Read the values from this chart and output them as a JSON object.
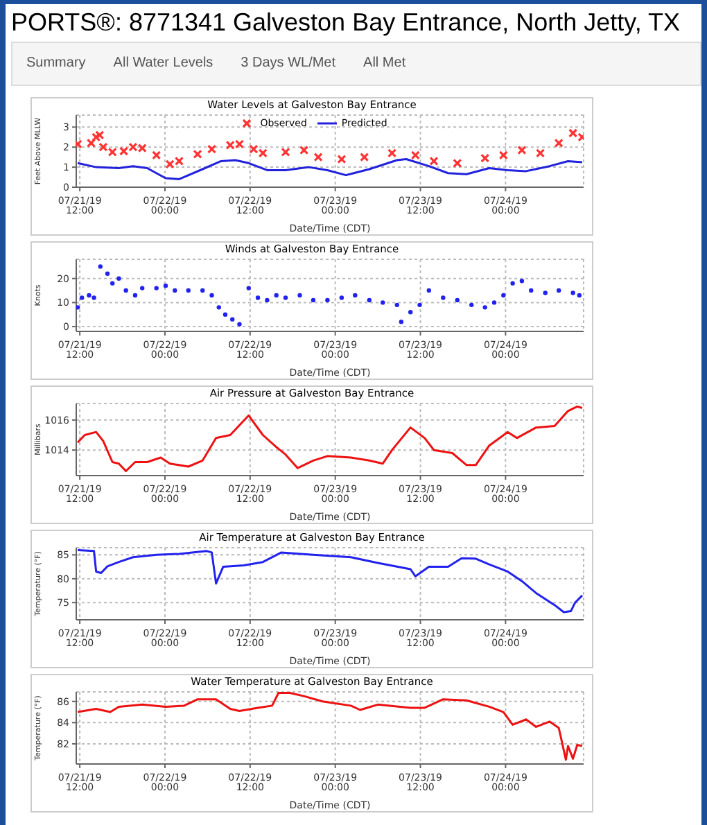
{
  "chart_data": [
    {
      "type": "other",
      "title": "PORTS®: 8771341 Galveston Bay Entrance, North Jetty, TX",
      "annotations": [
        "Summary",
        "All Water Levels",
        "3 Days WL/Met",
        "All Met"
      ]
    },
    {
      "type": "line",
      "title": "Water Levels at Galveston Bay Entrance",
      "xlabel": "Date/Time (CDT)",
      "ylabel": "Feet Above MLLW",
      "xlim": [
        "--07-21T11:30",
        "--07-24T11:00"
      ],
      "ylim": [
        0,
        3.6
      ],
      "yticks": [
        0,
        1,
        2,
        3
      ],
      "xticks": [
        {
          "value": "--07-21T12:00",
          "label": "07/21/19 12:00"
        },
        {
          "value": "--07-22T00:00",
          "label": "07/22/19 00:00"
        },
        {
          "value": "--07-22T12:00",
          "label": "07/22/19 12:00"
        },
        {
          "value": "--07-23T00:00",
          "label": "07/23/19 00:00"
        },
        {
          "value": "--07-23T12:00",
          "label": "07/23/19 12:00"
        },
        {
          "value": "--07-24T00:00",
          "label": "07/24/19 00:00"
        }
      ],
      "grid": true,
      "legend": "top",
      "series": [
        {
          "name": "Observed",
          "type": "scatter",
          "marker": "cross",
          "color": "#ff3333",
          "x": [
            "--07-21T11:42",
            "--07-21T13:36",
            "--07-21T14:18",
            "--07-21T14:48",
            "--07-21T15:18",
            "--07-21T16:36",
            "--07-21T18:12",
            "--07-21T19:30",
            "--07-21T20:48",
            "--07-21T22:48",
            "--07-22T00:42",
            "--07-22T02:00",
            "--07-22T04:36",
            "--07-22T06:36",
            "--07-22T09:12",
            "--07-22T10:30",
            "--07-22T12:30",
            "--07-22T13:48",
            "--07-22T17:00",
            "--07-22T19:36",
            "--07-22T21:36",
            "--07-23T00:54",
            "--07-23T04:06",
            "--07-23T08:00",
            "--07-23T11:18",
            "--07-23T13:54",
            "--07-23T17:12",
            "--07-23T21:06",
            "--07-23T23:42",
            "--07-24T02:18",
            "--07-24T04:54",
            "--07-24T07:30",
            "--07-24T09:30",
            "--07-24T10:48"
          ],
          "values": [
            2.15,
            2.2,
            2.5,
            2.6,
            2.0,
            1.75,
            1.8,
            2.0,
            1.95,
            1.6,
            1.15,
            1.3,
            1.65,
            1.9,
            2.1,
            2.15,
            1.9,
            1.7,
            1.75,
            1.85,
            1.5,
            1.4,
            1.5,
            1.7,
            1.6,
            1.3,
            1.2,
            1.45,
            1.6,
            1.85,
            1.7,
            2.2,
            2.7,
            2.5
          ]
        },
        {
          "name": "Predicted",
          "type": "line",
          "marker": "none",
          "color": "#2222dd",
          "x": [
            "--07-21T11:42",
            "--07-21T14:18",
            "--07-21T17:30",
            "--07-21T19:30",
            "--07-21T21:30",
            "--07-22T00:06",
            "--07-22T02:00",
            "--07-22T05:18",
            "--07-22T07:54",
            "--07-22T09:54",
            "--07-22T11:48",
            "--07-22T14:24",
            "--07-22T17:00",
            "--07-22T20:18",
            "--07-22T22:54",
            "--07-23T01:30",
            "--07-23T04:48",
            "--07-23T08:42",
            "--07-23T10:00",
            "--07-23T13:12",
            "--07-23T15:54",
            "--07-23T18:30",
            "--07-23T21:42",
            "--07-24T00:18",
            "--07-24T02:54",
            "--07-24T06:12",
            "--07-24T08:48",
            "--07-24T10:48"
          ],
          "values": [
            1.2,
            1.0,
            0.95,
            1.05,
            0.95,
            0.45,
            0.4,
            0.9,
            1.3,
            1.35,
            1.2,
            0.85,
            0.85,
            1.0,
            0.85,
            0.6,
            0.9,
            1.35,
            1.4,
            1.05,
            0.7,
            0.65,
            0.95,
            0.85,
            0.8,
            1.05,
            1.3,
            1.25
          ]
        }
      ]
    },
    {
      "type": "scatter",
      "title": "Winds at Galveston Bay Entrance",
      "xlabel": "Date/Time (CDT)",
      "ylabel": "Knots",
      "xlim": [
        "--07-21T11:30",
        "--07-24T11:00"
      ],
      "ylim": [
        -2,
        28
      ],
      "yticks": [
        0,
        10,
        20
      ],
      "xticks": [
        {
          "value": "--07-21T12:00",
          "label": "07/21/19 12:00"
        },
        {
          "value": "--07-22T00:00",
          "label": "07/22/19 00:00"
        },
        {
          "value": "--07-22T12:00",
          "label": "07/22/19 12:00"
        },
        {
          "value": "--07-23T00:00",
          "label": "07/23/19 00:00"
        },
        {
          "value": "--07-23T12:00",
          "label": "07/23/19 12:00"
        },
        {
          "value": "--07-24T00:00",
          "label": "07/24/19 00:00"
        }
      ],
      "grid": true,
      "marker": "circle",
      "series": [
        {
          "color": "#2222ee",
          "x": [
            "--07-21T11:42",
            "--07-21T12:18",
            "--07-21T13:18",
            "--07-21T14:00",
            "--07-21T14:54",
            "--07-21T15:54",
            "--07-21T16:36",
            "--07-21T17:30",
            "--07-21T18:30",
            "--07-21T19:48",
            "--07-21T20:48",
            "--07-21T22:48",
            "--07-22T00:06",
            "--07-22T01:24",
            "--07-22T03:18",
            "--07-22T05:18",
            "--07-22T06:36",
            "--07-22T07:36",
            "--07-22T08:30",
            "--07-22T09:30",
            "--07-22T10:30",
            "--07-22T11:48",
            "--07-22T13:06",
            "--07-22T14:24",
            "--07-22T15:42",
            "--07-22T17:00",
            "--07-22T19:00",
            "--07-22T20:54",
            "--07-22T22:54",
            "--07-23T00:54",
            "--07-23T02:48",
            "--07-23T04:48",
            "--07-23T06:42",
            "--07-23T08:42",
            "--07-23T09:18",
            "--07-23T10:36",
            "--07-23T11:54",
            "--07-23T13:12",
            "--07-23T15:12",
            "--07-23T17:12",
            "--07-23T19:12",
            "--07-23T21:06",
            "--07-23T22:24",
            "--07-23T23:42",
            "--07-24T01:00",
            "--07-24T02:18",
            "--07-24T03:36",
            "--07-24T05:36",
            "--07-24T07:30",
            "--07-24T09:30",
            "--07-24T10:24"
          ],
          "values": [
            8,
            12,
            13,
            12,
            25,
            22,
            18,
            20,
            15,
            13,
            16,
            16,
            17,
            15,
            15,
            15,
            13,
            8,
            5,
            3,
            1,
            16,
            12,
            11,
            13,
            12,
            13,
            11,
            11,
            12,
            13,
            11,
            10,
            9,
            2,
            6,
            9,
            15,
            12,
            11,
            9,
            8,
            10,
            13,
            18,
            19,
            15,
            14,
            15,
            14,
            13
          ]
        }
      ]
    },
    {
      "type": "line",
      "title": "Air Pressure at Galveston Bay Entrance",
      "xlabel": "Date/Time (CDT)",
      "ylabel": "Millibars",
      "xlim": [
        "--07-21T11:30",
        "--07-24T11:00"
      ],
      "ylim": [
        1012.3,
        1017.1
      ],
      "yticks": [
        1014,
        1016
      ],
      "xticks": [
        {
          "value": "--07-21T12:00",
          "label": "07/21/19 12:00"
        },
        {
          "value": "--07-22T00:00",
          "label": "07/22/19 00:00"
        },
        {
          "value": "--07-22T12:00",
          "label": "07/22/19 12:00"
        },
        {
          "value": "--07-23T00:00",
          "label": "07/23/19 00:00"
        },
        {
          "value": "--07-23T12:00",
          "label": "07/23/19 12:00"
        },
        {
          "value": "--07-24T00:00",
          "label": "07/24/19 00:00"
        }
      ],
      "grid": true,
      "series": [
        {
          "color": "#ee1111",
          "x": [
            "--07-21T11:42",
            "--07-21T12:42",
            "--07-21T14:18",
            "--07-21T15:18",
            "--07-21T16:36",
            "--07-21T17:30",
            "--07-21T18:30",
            "--07-21T19:48",
            "--07-21T21:30",
            "--07-21T23:24",
            "--07-22T00:42",
            "--07-22T03:18",
            "--07-22T05:18",
            "--07-22T07:12",
            "--07-22T09:12",
            "--07-22T11:48",
            "--07-22T13:48",
            "--07-22T15:42",
            "--07-22T17:00",
            "--07-22T18:42",
            "--07-22T20:54",
            "--07-22T22:54",
            "--07-23T02:12",
            "--07-23T04:48",
            "--07-23T06:42",
            "--07-23T08:00",
            "--07-23T10:36",
            "--07-23T12:36",
            "--07-23T13:54",
            "--07-23T16:30",
            "--07-23T18:30",
            "--07-23T19:48",
            "--07-23T21:42",
            "--07-24T00:18",
            "--07-24T01:36",
            "--07-24T04:18",
            "--07-24T06:54",
            "--07-24T08:48",
            "--07-24T10:06",
            "--07-24T10:48"
          ],
          "values": [
            1014.5,
            1015.0,
            1015.2,
            1014.6,
            1013.2,
            1013.1,
            1012.6,
            1013.2,
            1013.2,
            1013.5,
            1013.1,
            1012.9,
            1013.3,
            1014.8,
            1015.0,
            1016.3,
            1015.0,
            1014.2,
            1013.7,
            1012.8,
            1013.3,
            1013.6,
            1013.5,
            1013.3,
            1013.1,
            1014.0,
            1015.5,
            1014.8,
            1014.0,
            1013.8,
            1013.0,
            1013.0,
            1014.3,
            1015.2,
            1014.8,
            1015.5,
            1015.6,
            1016.6,
            1016.9,
            1016.8
          ]
        }
      ]
    },
    {
      "type": "line",
      "title": "Air Temperature at Galveston Bay Entrance",
      "xlabel": "Date/Time (CDT)",
      "ylabel": "Temperature (°F)",
      "xlim": [
        "--07-21T11:30",
        "--07-24T11:00"
      ],
      "ylim": [
        71.4,
        86.5
      ],
      "yticks": [
        75,
        80,
        85
      ],
      "xticks": [
        {
          "value": "--07-21T12:00",
          "label": "07/21/19 12:00"
        },
        {
          "value": "--07-22T00:00",
          "label": "07/22/19 00:00"
        },
        {
          "value": "--07-22T12:00",
          "label": "07/22/19 12:00"
        },
        {
          "value": "--07-23T00:00",
          "label": "07/23/19 00:00"
        },
        {
          "value": "--07-23T12:00",
          "label": "07/23/19 12:00"
        },
        {
          "value": "--07-24T00:00",
          "label": "07/24/19 00:00"
        }
      ],
      "grid": true,
      "series": [
        {
          "color": "#2222ee",
          "x": [
            "--07-21T11:42",
            "--07-21T14:00",
            "--07-21T14:18",
            "--07-21T15:00",
            "--07-21T15:54",
            "--07-21T17:30",
            "--07-21T19:30",
            "--07-21T22:48",
            "--07-22T02:00",
            "--07-22T05:54",
            "--07-22T06:36",
            "--07-22T07:12",
            "--07-22T08:12",
            "--07-22T11:06",
            "--07-22T13:48",
            "--07-22T16:24",
            "--07-22T20:54",
            "--07-23T02:12",
            "--07-23T06:00",
            "--07-23T10:36",
            "--07-23T11:18",
            "--07-23T13:12",
            "--07-23T15:54",
            "--07-23T17:48",
            "--07-23T19:48",
            "--07-23T21:42",
            "--07-24T00:18",
            "--07-24T02:18",
            "--07-24T04:18",
            "--07-24T06:54",
            "--07-24T08:12",
            "--07-24T09:12",
            "--07-24T09:48",
            "--07-24T10:48"
          ],
          "values": [
            86,
            85.8,
            81.5,
            81.2,
            82.6,
            83.5,
            84.5,
            85,
            85.2,
            85.8,
            85.5,
            79,
            82.5,
            82.8,
            83.5,
            85.5,
            85.0,
            84.5,
            83.3,
            82,
            80.5,
            82.5,
            82.5,
            84.3,
            84.2,
            83,
            81.5,
            79.5,
            77,
            74.5,
            73,
            73.2,
            75,
            76.5
          ]
        }
      ]
    },
    {
      "type": "line",
      "title": "Water Temperature at Galveston Bay Entrance",
      "xlabel": "Date/Time (CDT)",
      "ylabel": "Temperature (°F)",
      "xlim": [
        "--07-21T11:30",
        "--07-24T11:00"
      ],
      "ylim": [
        80.1,
        86.9
      ],
      "yticks": [
        82,
        84,
        86
      ],
      "xticks": [
        {
          "value": "--07-21T12:00",
          "label": "07/21/19 12:00"
        },
        {
          "value": "--07-22T00:00",
          "label": "07/22/19 00:00"
        },
        {
          "value": "--07-22T12:00",
          "label": "07/22/19 12:00"
        },
        {
          "value": "--07-23T00:00",
          "label": "07/23/19 00:00"
        },
        {
          "value": "--07-23T12:00",
          "label": "07/23/19 12:00"
        },
        {
          "value": "--07-24T00:00",
          "label": "07/24/19 00:00"
        }
      ],
      "grid": true,
      "series": [
        {
          "color": "#ee1111",
          "x": [
            "--07-21T11:42",
            "--07-21T14:18",
            "--07-21T16:18",
            "--07-21T17:30",
            "--07-21T20:48",
            "--07-22T00:06",
            "--07-22T02:42",
            "--07-22T04:36",
            "--07-22T07:12",
            "--07-22T09:12",
            "--07-22T10:30",
            "--07-22T13:06",
            "--07-22T15:06",
            "--07-22T16:00",
            "--07-22T17:36",
            "--07-22T19:36",
            "--07-22T22:12",
            "--07-23T02:12",
            "--07-23T03:30",
            "--07-23T06:00",
            "--07-23T10:36",
            "--07-23T12:36",
            "--07-23T15:12",
            "--07-23T18:30",
            "--07-23T21:42",
            "--07-23T23:42",
            "--07-24T01:00",
            "--07-24T02:54",
            "--07-24T04:18",
            "--07-24T06:12",
            "--07-24T07:30",
            "--07-24T08:30",
            "--07-24T08:48",
            "--07-24T09:30",
            "--07-24T10:06",
            "--07-24T10:48"
          ],
          "values": [
            85,
            85.3,
            85.0,
            85.5,
            85.7,
            85.5,
            85.6,
            86.2,
            86.2,
            85.3,
            85.1,
            85.4,
            85.6,
            86.8,
            86.8,
            86.5,
            86.0,
            85.6,
            85.2,
            85.7,
            85.4,
            85.4,
            86.2,
            86.1,
            85.5,
            85,
            83.8,
            84.3,
            83.6,
            84.1,
            83.5,
            80.5,
            81.8,
            80.6,
            81.9,
            81.8
          ]
        }
      ]
    }
  ]
}
